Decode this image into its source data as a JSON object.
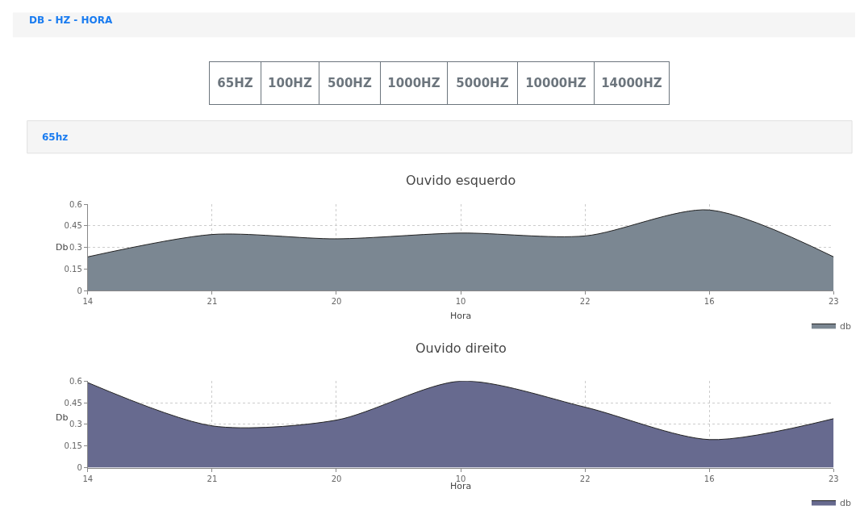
{
  "chart_data": [
    {
      "type": "area",
      "title": "Ouvido esquerdo",
      "xlabel": "Hora",
      "ylabel": "Db",
      "annotations": [
        "DB - HZ - HORA",
        "65HZ",
        "100HZ",
        "500HZ",
        "1000HZ",
        "5000HZ",
        "10000HZ",
        "14000HZ",
        "65hz"
      ],
      "categories": [
        "14",
        "21",
        "20",
        "10",
        "22",
        "16",
        "23"
      ],
      "series": [
        {
          "name": "db",
          "color": "#7b8792",
          "values": [
            0.235,
            0.39,
            0.36,
            0.4,
            0.38,
            0.56,
            0.235
          ]
        }
      ],
      "ylim": [
        0,
        0.6
      ],
      "yticks": [
        0,
        0.15,
        0.3,
        0.45,
        0.6
      ],
      "grid": true,
      "legend": "bottom right"
    },
    {
      "type": "area",
      "title": "Ouvido direito",
      "xlabel": "Hora",
      "ylabel": "Db",
      "categories": [
        "14",
        "21",
        "20",
        "10",
        "22",
        "16",
        "23"
      ],
      "series": [
        {
          "name": "db",
          "color": "#676a8f",
          "values": [
            0.59,
            0.29,
            0.33,
            0.6,
            0.42,
            0.195,
            0.34
          ]
        }
      ],
      "ylim": [
        0,
        0.6
      ],
      "yticks": [
        0,
        0.15,
        0.3,
        0.45,
        0.6
      ],
      "grid": true,
      "legend": "bottom right"
    }
  ]
}
